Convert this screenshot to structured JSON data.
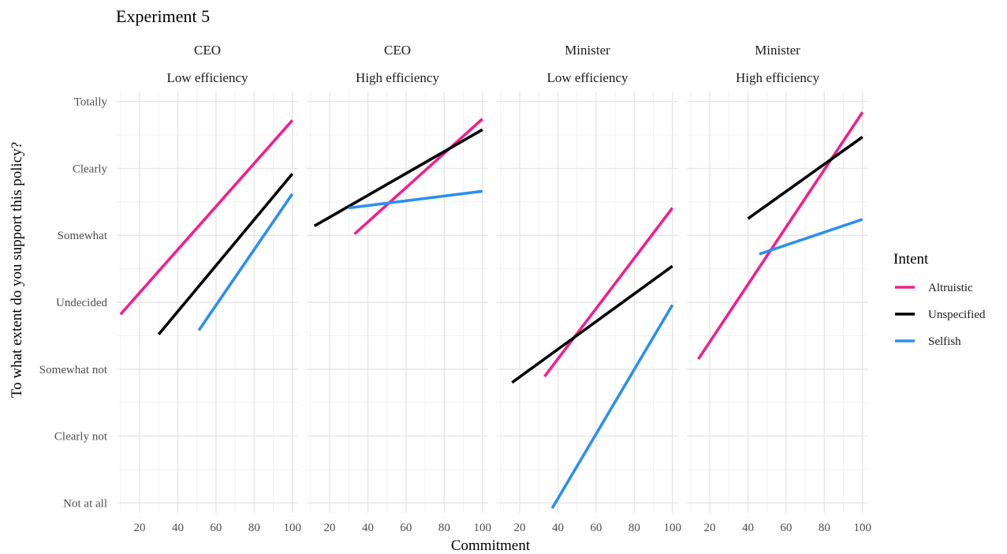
{
  "chart_data": {
    "type": "line",
    "title": "Experiment 5",
    "xlabel": "Commitment",
    "ylabel": "To what extent do you support this policy?",
    "x_ticks": [
      20,
      40,
      60,
      80,
      100
    ],
    "xlim": [
      8,
      103
    ],
    "y_levels": [
      "Not at all",
      "Clearly not",
      "Somewhat not",
      "Undecided",
      "Somewhat",
      "Clearly",
      "Totally"
    ],
    "ylim": [
      0.85,
      7.15
    ],
    "legend": {
      "title": "Intent",
      "entries": [
        {
          "name": "Altruistic",
          "color": "#f0208f"
        },
        {
          "name": "Unspecified",
          "color": "#000000"
        },
        {
          "name": "Selfish",
          "color": "#2b8ff0"
        }
      ],
      "position": "right"
    },
    "panels": [
      {
        "strip_top": "CEO",
        "strip_bottom": "Low efficiency",
        "series": [
          {
            "name": "Altruistic",
            "x": [
              10,
              100
            ],
            "y": [
              3.82,
              6.72
            ]
          },
          {
            "name": "Unspecified",
            "x": [
              30,
              100
            ],
            "y": [
              3.52,
              5.92
            ]
          },
          {
            "name": "Selfish",
            "x": [
              51,
              100
            ],
            "y": [
              3.58,
              5.62
            ]
          }
        ]
      },
      {
        "strip_top": "CEO",
        "strip_bottom": "High efficiency",
        "series": [
          {
            "name": "Altruistic",
            "x": [
              33,
              100
            ],
            "y": [
              5.02,
              6.74
            ]
          },
          {
            "name": "Unspecified",
            "x": [
              12,
              100
            ],
            "y": [
              5.14,
              6.58
            ]
          },
          {
            "name": "Selfish",
            "x": [
              30,
              100
            ],
            "y": [
              5.41,
              5.66
            ]
          }
        ]
      },
      {
        "strip_top": "Minister",
        "strip_bottom": "Low efficiency",
        "series": [
          {
            "name": "Altruistic",
            "x": [
              33,
              100
            ],
            "y": [
              2.89,
              5.41
            ]
          },
          {
            "name": "Unspecified",
            "x": [
              16,
              100
            ],
            "y": [
              2.8,
              4.54
            ]
          },
          {
            "name": "Selfish",
            "x": [
              37,
              100
            ],
            "y": [
              0.92,
              3.96
            ]
          }
        ]
      },
      {
        "strip_top": "Minister",
        "strip_bottom": "High efficiency",
        "series": [
          {
            "name": "Altruistic",
            "x": [
              14,
              100
            ],
            "y": [
              3.15,
              6.84
            ]
          },
          {
            "name": "Unspecified",
            "x": [
              40,
              100
            ],
            "y": [
              5.25,
              6.47
            ]
          },
          {
            "name": "Selfish",
            "x": [
              46,
              100
            ],
            "y": [
              4.72,
              5.24
            ]
          }
        ]
      }
    ],
    "grid": true
  }
}
